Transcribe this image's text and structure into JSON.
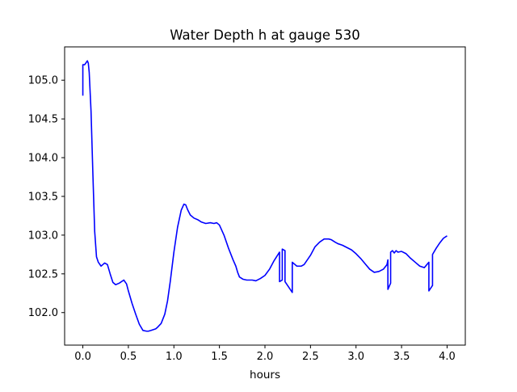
{
  "chart_data": {
    "type": "line",
    "title": "Water Depth h at gauge 530",
    "xlabel": "hours",
    "ylabel": "",
    "xlim": [
      -0.2,
      4.2
    ],
    "ylim": [
      101.58,
      105.43
    ],
    "x_ticks": [
      0.0,
      0.5,
      1.0,
      1.5,
      2.0,
      2.5,
      3.0,
      3.5,
      4.0
    ],
    "x_tick_labels": [
      "0.0",
      "0.5",
      "1.0",
      "1.5",
      "2.0",
      "2.5",
      "3.0",
      "3.5",
      "4.0"
    ],
    "y_ticks": [
      102.0,
      102.5,
      103.0,
      103.5,
      104.0,
      104.5,
      105.0
    ],
    "y_tick_labels": [
      "102.0",
      "102.5",
      "103.0",
      "103.5",
      "104.0",
      "104.5",
      "105.0"
    ],
    "grid": false,
    "legend": "none",
    "series": [
      {
        "color": "#0000ff",
        "x": [
          0.0,
          0.0,
          0.02,
          0.05,
          0.06,
          0.07,
          0.09,
          0.11,
          0.13,
          0.15,
          0.17,
          0.2,
          0.22,
          0.24,
          0.27,
          0.3,
          0.33,
          0.36,
          0.4,
          0.45,
          0.48,
          0.5,
          0.54,
          0.58,
          0.62,
          0.66,
          0.7,
          0.72,
          0.75,
          0.8,
          0.82,
          0.86,
          0.9,
          0.93,
          0.96,
          1.0,
          1.04,
          1.08,
          1.11,
          1.13,
          1.15,
          1.18,
          1.22,
          1.26,
          1.3,
          1.35,
          1.4,
          1.44,
          1.47,
          1.5,
          1.55,
          1.6,
          1.65,
          1.68,
          1.7,
          1.72,
          1.76,
          1.8,
          1.86,
          1.9,
          1.95,
          2.0,
          2.05,
          2.1,
          2.16,
          2.16,
          2.19,
          2.19,
          2.22,
          2.22,
          2.3,
          2.3,
          2.35,
          2.4,
          2.43,
          2.5,
          2.55,
          2.6,
          2.65,
          2.7,
          2.73,
          2.77,
          2.8,
          2.85,
          2.9,
          2.95,
          3.0,
          3.05,
          3.1,
          3.15,
          3.2,
          3.25,
          3.3,
          3.34,
          3.35,
          3.35,
          3.38,
          3.38,
          3.4,
          3.42,
          3.44,
          3.46,
          3.5,
          3.55,
          3.6,
          3.65,
          3.7,
          3.75,
          3.8,
          3.8,
          3.84,
          3.84,
          3.88,
          3.92,
          3.96,
          4.0
        ],
        "y": [
          104.8,
          105.2,
          105.2,
          105.25,
          105.22,
          105.1,
          104.6,
          103.8,
          103.05,
          102.72,
          102.65,
          102.6,
          102.62,
          102.64,
          102.62,
          102.5,
          102.39,
          102.36,
          102.38,
          102.42,
          102.37,
          102.28,
          102.12,
          101.98,
          101.85,
          101.77,
          101.76,
          101.76,
          101.77,
          101.79,
          101.81,
          101.86,
          101.98,
          102.15,
          102.4,
          102.78,
          103.1,
          103.32,
          103.4,
          103.39,
          103.33,
          103.26,
          103.22,
          103.2,
          103.17,
          103.15,
          103.16,
          103.15,
          103.16,
          103.13,
          103.0,
          102.83,
          102.68,
          102.6,
          102.52,
          102.46,
          102.43,
          102.42,
          102.42,
          102.41,
          102.44,
          102.48,
          102.56,
          102.67,
          102.78,
          102.4,
          102.42,
          102.82,
          102.8,
          102.4,
          102.26,
          102.65,
          102.6,
          102.6,
          102.62,
          102.74,
          102.85,
          102.91,
          102.95,
          102.95,
          102.94,
          102.91,
          102.89,
          102.87,
          102.84,
          102.81,
          102.76,
          102.7,
          102.63,
          102.56,
          102.52,
          102.53,
          102.56,
          102.62,
          102.68,
          102.3,
          102.38,
          102.78,
          102.8,
          102.77,
          102.8,
          102.78,
          102.79,
          102.76,
          102.7,
          102.65,
          102.6,
          102.58,
          102.65,
          102.28,
          102.35,
          102.75,
          102.83,
          102.9,
          102.96,
          102.99
        ]
      }
    ]
  }
}
